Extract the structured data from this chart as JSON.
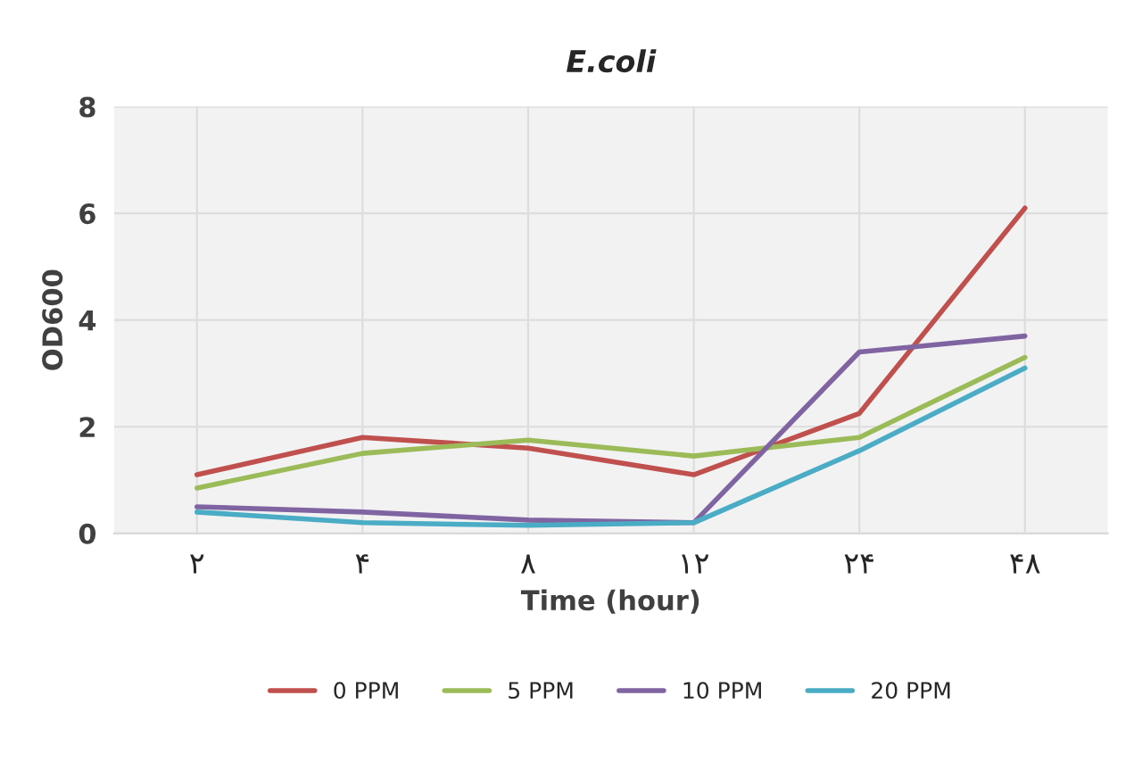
{
  "chart_data": {
    "type": "line",
    "title": "E.coli",
    "xlabel": "Time (hour)",
    "ylabel": "OD600",
    "categories": [
      "۲",
      "۴",
      "۸",
      "۱۲",
      "۲۴",
      "۴۸"
    ],
    "series": [
      {
        "name": "0 PPM",
        "color": "#c0504d",
        "values": [
          1.1,
          1.8,
          1.6,
          1.1,
          2.25,
          6.1
        ]
      },
      {
        "name": "5 PPM",
        "color": "#9bbb59",
        "values": [
          0.85,
          1.5,
          1.75,
          1.45,
          1.8,
          3.3
        ]
      },
      {
        "name": "10 PPM",
        "color": "#8064a2",
        "values": [
          0.5,
          0.4,
          0.25,
          0.2,
          3.4,
          3.7
        ]
      },
      {
        "name": "20 PPM",
        "color": "#4bacc6",
        "values": [
          0.4,
          0.2,
          0.15,
          0.2,
          1.55,
          3.1
        ]
      }
    ],
    "ylim": [
      0,
      8
    ],
    "yticks": [
      0,
      2,
      4,
      6,
      8
    ],
    "grid": true,
    "legend": "bottom",
    "marker": "none",
    "line_style": "solid"
  }
}
